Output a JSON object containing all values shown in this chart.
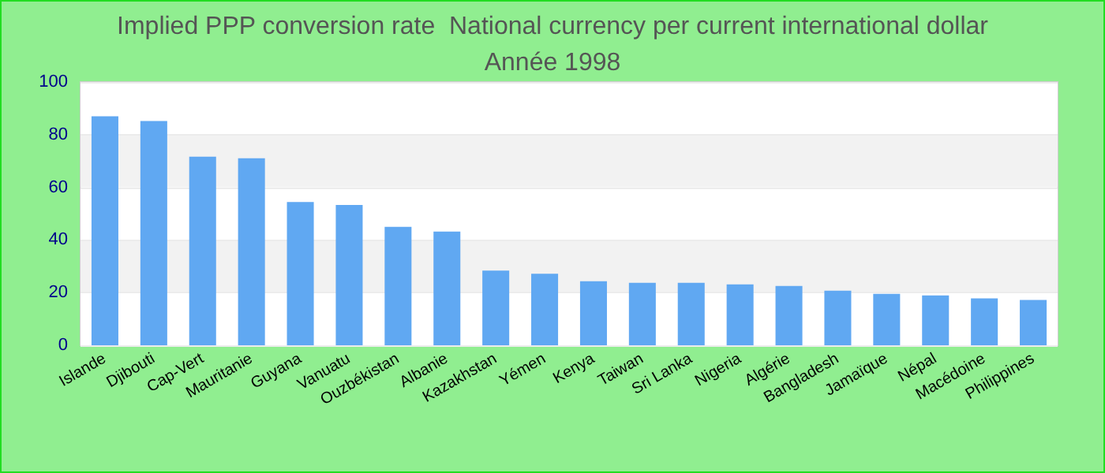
{
  "chart_data": {
    "type": "bar",
    "title": "Implied PPP conversion rate  National currency per current international dollar",
    "subtitle": "Année 1998",
    "categories": [
      "Islande",
      "Djibouti",
      "Cap-Vert",
      "Mauritanie",
      "Guyana",
      "Vanuatu",
      "Ouzbékistan",
      "Albanie",
      "Kazakhstan",
      "Yémen",
      "Kenya",
      "Taiwan",
      "Sri Lanka",
      "Nigeria",
      "Algérie",
      "Bangladesh",
      "Jamaïque",
      "Népal",
      "Macédoine",
      "Philippines"
    ],
    "values": [
      87,
      85.2,
      71.6,
      71,
      54.4,
      53.3,
      45,
      43.2,
      28.4,
      27.2,
      24.3,
      23.7,
      23.7,
      23.1,
      22.5,
      20.7,
      19.5,
      18.9,
      17.8,
      17.2
    ],
    "color": "#60a8f2",
    "ylim": [
      0,
      100
    ],
    "yticks": [
      0,
      20,
      40,
      60,
      80,
      100
    ],
    "grid": "y"
  }
}
